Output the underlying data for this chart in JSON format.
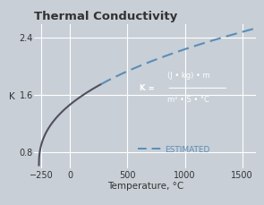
{
  "title": "Thermal Conductivity",
  "xlabel": "Temperature, °C",
  "ylabel": "K",
  "bg_color": "#c8cfd6",
  "fig_bg_color": "#c8cfd6",
  "curve_color_solid": "#50505f",
  "curve_color_dashed": "#5b8db8",
  "xlim": [
    -310,
    1620
  ],
  "ylim": [
    0.58,
    2.58
  ],
  "xticks": [
    -250,
    0,
    500,
    1000,
    1500
  ],
  "yticks": [
    0.8,
    1.6,
    2.4
  ],
  "formula_prefix": "K = ",
  "formula_line1": "(J • kg) • m",
  "formula_line2": "m² • S • °C",
  "legend_label": "ESTIMATED",
  "title_fontsize": 9.5,
  "label_fontsize": 7.5,
  "tick_fontsize": 7,
  "formula_color": "#ffffff",
  "legend_color": "#5b8db8"
}
